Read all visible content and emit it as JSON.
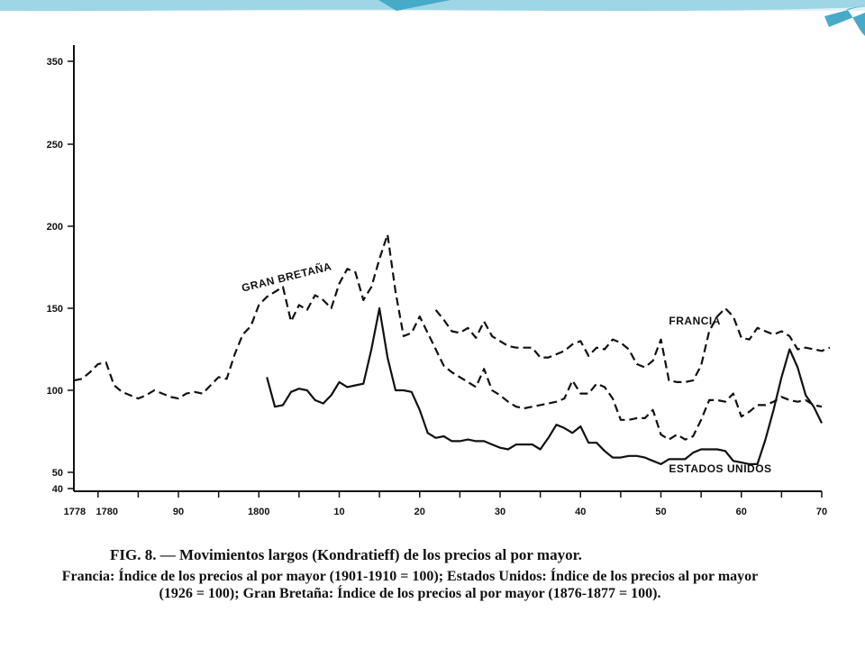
{
  "colors": {
    "banner_light": "#dff3f8",
    "banner_mid": "#9fd6e6",
    "banner_dark": "#46aac8",
    "ink": "#111111"
  },
  "caption": {
    "title": "FIG. 8. — Movimientos largos (Kondratieff) de los precios al por mayor.",
    "body": "Francia: Índice de los precios al por mayor (1901-1910 = 100); Estados Unidos: Índice de los precios al por mayor (1926 = 100); Gran Bretaña: Índice de los precios al por mayor (1876-1877 = 100)."
  },
  "chart_data": {
    "type": "line",
    "title": "",
    "xlabel": "",
    "ylabel": "",
    "xlim": [
      1777,
      1870
    ],
    "ylim": [
      38,
      370
    ],
    "y_ticks": [
      40,
      50,
      100,
      150,
      200,
      250,
      350
    ],
    "x_ticks": [
      {
        "value": 1778,
        "label": "1778"
      },
      {
        "value": 1780,
        "label": "1780"
      },
      {
        "value": 1790,
        "label": "90"
      },
      {
        "value": 1800,
        "label": "1800"
      },
      {
        "value": 1810,
        "label": "10"
      },
      {
        "value": 1820,
        "label": "20"
      },
      {
        "value": 1830,
        "label": "30"
      },
      {
        "value": 1840,
        "label": "40"
      },
      {
        "value": 1850,
        "label": "50"
      },
      {
        "value": 1860,
        "label": "60"
      },
      {
        "value": 1870,
        "label": "70"
      }
    ],
    "grid": false,
    "legend": "none",
    "series": [
      {
        "name": "GRAN BRETAÑA",
        "style": "dashed",
        "label_at": [
          1798,
          160
        ],
        "points": [
          [
            1777,
            106
          ],
          [
            1778,
            107
          ],
          [
            1779,
            111
          ],
          [
            1780,
            116
          ],
          [
            1781,
            117
          ],
          [
            1782,
            103
          ],
          [
            1783,
            99
          ],
          [
            1784,
            97
          ],
          [
            1785,
            95
          ],
          [
            1786,
            97
          ],
          [
            1787,
            100
          ],
          [
            1788,
            98
          ],
          [
            1789,
            96
          ],
          [
            1790,
            95
          ],
          [
            1791,
            98
          ],
          [
            1792,
            99
          ],
          [
            1793,
            98
          ],
          [
            1794,
            103
          ],
          [
            1795,
            108
          ],
          [
            1796,
            107
          ],
          [
            1797,
            122
          ],
          [
            1798,
            134
          ],
          [
            1799,
            139
          ],
          [
            1800,
            152
          ],
          [
            1801,
            157
          ],
          [
            1802,
            160
          ],
          [
            1803,
            163
          ],
          [
            1804,
            142
          ],
          [
            1805,
            152
          ],
          [
            1806,
            149
          ],
          [
            1807,
            158
          ],
          [
            1808,
            155
          ],
          [
            1809,
            150
          ],
          [
            1810,
            165
          ],
          [
            1811,
            174
          ],
          [
            1812,
            172
          ],
          [
            1813,
            155
          ],
          [
            1814,
            163
          ],
          [
            1815,
            180
          ],
          [
            1816,
            195
          ],
          [
            1817,
            160
          ],
          [
            1818,
            133
          ],
          [
            1819,
            135
          ],
          [
            1820,
            145
          ],
          [
            1821,
            135
          ],
          [
            1822,
            125
          ],
          [
            1823,
            115
          ],
          [
            1824,
            111
          ],
          [
            1825,
            108
          ],
          [
            1826,
            105
          ],
          [
            1827,
            102
          ],
          [
            1828,
            113
          ],
          [
            1829,
            100
          ],
          [
            1830,
            97
          ],
          [
            1831,
            93
          ],
          [
            1832,
            90
          ],
          [
            1833,
            89
          ],
          [
            1834,
            90
          ],
          [
            1835,
            91
          ],
          [
            1836,
            92
          ],
          [
            1837,
            93
          ],
          [
            1838,
            95
          ],
          [
            1839,
            106
          ],
          [
            1840,
            98
          ],
          [
            1841,
            98
          ],
          [
            1842,
            104
          ],
          [
            1843,
            102
          ],
          [
            1844,
            95
          ],
          [
            1845,
            82
          ],
          [
            1846,
            82
          ],
          [
            1847,
            83
          ],
          [
            1848,
            83
          ],
          [
            1849,
            88
          ],
          [
            1850,
            73
          ],
          [
            1851,
            70
          ],
          [
            1852,
            73
          ],
          [
            1853,
            70
          ],
          [
            1854,
            72
          ],
          [
            1855,
            82
          ],
          [
            1856,
            94
          ],
          [
            1857,
            94
          ],
          [
            1858,
            93
          ],
          [
            1859,
            98
          ],
          [
            1860,
            84
          ],
          [
            1861,
            87
          ],
          [
            1862,
            91
          ],
          [
            1863,
            91
          ],
          [
            1864,
            93
          ],
          [
            1865,
            96
          ],
          [
            1866,
            94
          ],
          [
            1867,
            93
          ],
          [
            1868,
            94
          ],
          [
            1869,
            91
          ],
          [
            1870,
            90
          ]
        ]
      },
      {
        "name": "FRANCIA",
        "style": "dashed",
        "label_at": [
          1851,
          140
        ],
        "points": [
          [
            1822,
            149
          ],
          [
            1823,
            143
          ],
          [
            1824,
            136
          ],
          [
            1825,
            135
          ],
          [
            1826,
            138
          ],
          [
            1827,
            132
          ],
          [
            1828,
            142
          ],
          [
            1829,
            133
          ],
          [
            1830,
            130
          ],
          [
            1831,
            127
          ],
          [
            1832,
            126
          ],
          [
            1833,
            126
          ],
          [
            1834,
            126
          ],
          [
            1835,
            120
          ],
          [
            1836,
            120
          ],
          [
            1837,
            122
          ],
          [
            1838,
            124
          ],
          [
            1839,
            128
          ],
          [
            1840,
            130
          ],
          [
            1841,
            121
          ],
          [
            1842,
            126
          ],
          [
            1843,
            125
          ],
          [
            1844,
            131
          ],
          [
            1845,
            129
          ],
          [
            1846,
            125
          ],
          [
            1847,
            116
          ],
          [
            1848,
            114
          ],
          [
            1849,
            118
          ],
          [
            1850,
            131
          ],
          [
            1851,
            106
          ],
          [
            1852,
            105
          ],
          [
            1853,
            105
          ],
          [
            1854,
            106
          ],
          [
            1855,
            115
          ],
          [
            1856,
            136
          ],
          [
            1857,
            145
          ],
          [
            1858,
            150
          ],
          [
            1859,
            145
          ],
          [
            1860,
            132
          ],
          [
            1861,
            131
          ],
          [
            1862,
            138
          ],
          [
            1863,
            136
          ],
          [
            1864,
            134
          ],
          [
            1865,
            136
          ],
          [
            1866,
            133
          ],
          [
            1867,
            125
          ],
          [
            1868,
            126
          ],
          [
            1869,
            125
          ],
          [
            1870,
            124
          ],
          [
            1871,
            126
          ]
        ]
      },
      {
        "name": "ESTADOS UNIDOS",
        "style": "solid",
        "label_at": [
          1851,
          50
        ],
        "points": [
          [
            1801,
            108
          ],
          [
            1802,
            90
          ],
          [
            1803,
            91
          ],
          [
            1804,
            99
          ],
          [
            1805,
            101
          ],
          [
            1806,
            100
          ],
          [
            1807,
            94
          ],
          [
            1808,
            92
          ],
          [
            1809,
            97
          ],
          [
            1810,
            105
          ],
          [
            1811,
            102
          ],
          [
            1812,
            103
          ],
          [
            1813,
            104
          ],
          [
            1814,
            125
          ],
          [
            1815,
            150
          ],
          [
            1816,
            120
          ],
          [
            1817,
            100
          ],
          [
            1818,
            100
          ],
          [
            1819,
            99
          ],
          [
            1820,
            88
          ],
          [
            1821,
            74
          ],
          [
            1822,
            71
          ],
          [
            1823,
            72
          ],
          [
            1824,
            69
          ],
          [
            1825,
            69
          ],
          [
            1826,
            70
          ],
          [
            1827,
            69
          ],
          [
            1828,
            69
          ],
          [
            1829,
            67
          ],
          [
            1830,
            65
          ],
          [
            1831,
            64
          ],
          [
            1832,
            67
          ],
          [
            1833,
            67
          ],
          [
            1834,
            67
          ],
          [
            1835,
            64
          ],
          [
            1836,
            71
          ],
          [
            1837,
            79
          ],
          [
            1838,
            77
          ],
          [
            1839,
            74
          ],
          [
            1840,
            78
          ],
          [
            1841,
            68
          ],
          [
            1842,
            68
          ],
          [
            1843,
            63
          ],
          [
            1844,
            59
          ],
          [
            1845,
            59
          ],
          [
            1846,
            60
          ],
          [
            1847,
            60
          ],
          [
            1848,
            59
          ],
          [
            1849,
            57
          ],
          [
            1850,
            55
          ],
          [
            1851,
            58
          ],
          [
            1852,
            58
          ],
          [
            1853,
            58
          ],
          [
            1854,
            62
          ],
          [
            1855,
            64
          ],
          [
            1856,
            64
          ],
          [
            1857,
            64
          ],
          [
            1858,
            63
          ],
          [
            1859,
            57
          ],
          [
            1860,
            56
          ],
          [
            1861,
            55
          ],
          [
            1862,
            55
          ],
          [
            1863,
            70
          ],
          [
            1864,
            88
          ],
          [
            1865,
            108
          ],
          [
            1866,
            125
          ],
          [
            1867,
            114
          ],
          [
            1868,
            97
          ],
          [
            1869,
            90
          ],
          [
            1870,
            80
          ]
        ]
      }
    ]
  }
}
